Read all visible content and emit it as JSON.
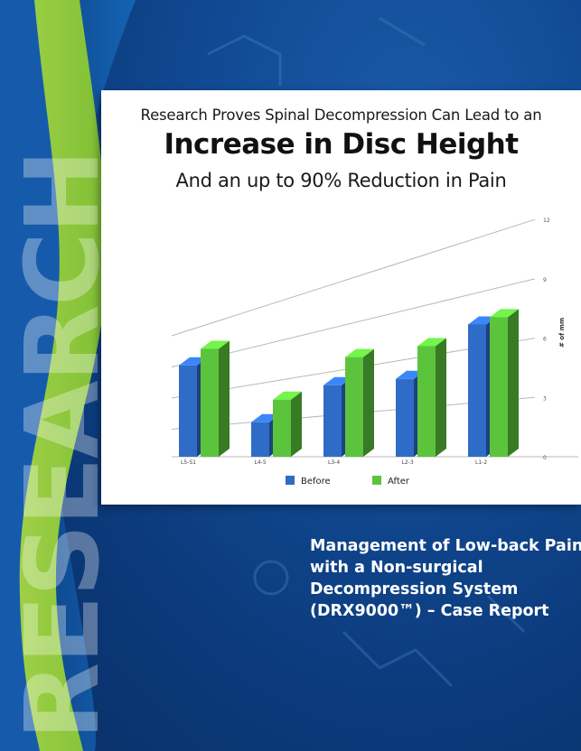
{
  "background_word": "RESEARCH",
  "headline": {
    "line1": "Research Proves Spinal Decompression Can Lead to an",
    "line2": "Increase in Disc Height",
    "line3": "And an up to 90% Reduction in Pain"
  },
  "caption": {
    "line1": "Management of Low-back Pain",
    "line2": "with a Non-surgical",
    "line3": "Decompression System",
    "line4": "(DRX9000™) – Case Report"
  },
  "colors": {
    "before": "#2f6cc8",
    "after": "#5cc43c",
    "swoosh": "#8dc63f",
    "background": "#0f4a92"
  },
  "chart_data": {
    "type": "bar",
    "categories": [
      "L5-S1",
      "L4-5",
      "L3-4",
      "L2-3",
      "L1-2"
    ],
    "series": [
      {
        "name": "Before",
        "values": [
          8.3,
          2.9,
          5.6,
          5.7,
          9.1
        ]
      },
      {
        "name": "After",
        "values": [
          9.8,
          4.8,
          7.8,
          8.1,
          9.6
        ]
      }
    ],
    "ylabel": "# of mm",
    "yticks": [
      0,
      3,
      6,
      9,
      12
    ],
    "ylim": [
      0,
      12
    ],
    "y_axis_side": "right",
    "style": "3d",
    "grid": true,
    "legend_position": "bottom"
  }
}
